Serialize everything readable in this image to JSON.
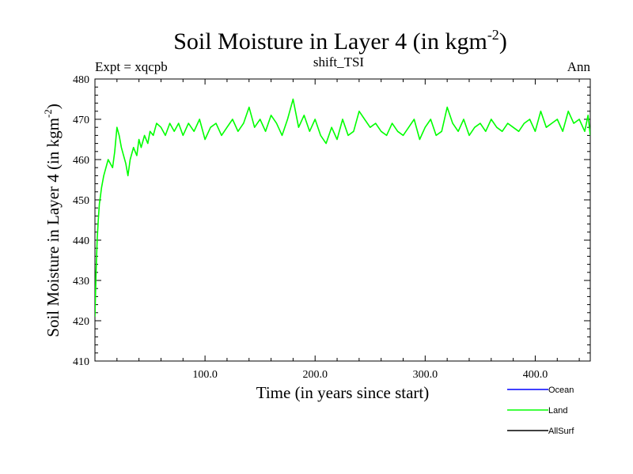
{
  "chart_data": {
    "type": "line",
    "title": "Soil Moisture in Layer 4 (in kgm",
    "title_sup": "-2",
    "title_close": ")",
    "subtitle_left": "Expt = xqcpb",
    "subtitle_center": "shift_TSI",
    "subtitle_right": "Ann",
    "xlabel": "Time (in years since start)",
    "ylabel": "Soil Moisture in Layer 4 (in kgm",
    "ylabel_sup": "-2",
    "ylabel_close": ")",
    "xlim": [
      0,
      450
    ],
    "ylim": [
      410,
      480
    ],
    "x_ticks": [
      100,
      200,
      300,
      400
    ],
    "x_tick_labels": [
      "100.0",
      "200.0",
      "300.0",
      "400.0"
    ],
    "y_ticks": [
      410,
      420,
      430,
      440,
      450,
      460,
      470,
      480
    ],
    "y_tick_labels": [
      "410",
      "420",
      "430",
      "440",
      "450",
      "460",
      "470",
      "480"
    ],
    "legend": [
      {
        "name": "Ocean",
        "color": "#0000ff"
      },
      {
        "name": "Land",
        "color": "#00ff00"
      },
      {
        "name": "AllSurf",
        "color": "#000000"
      }
    ],
    "series": [
      {
        "name": "Land",
        "color": "#00ff00",
        "x": [
          0,
          1,
          2,
          3,
          4,
          5,
          6,
          8,
          10,
          12,
          14,
          16,
          18,
          20,
          22,
          24,
          26,
          28,
          30,
          32,
          35,
          38,
          40,
          42,
          45,
          48,
          50,
          53,
          56,
          60,
          64,
          68,
          72,
          76,
          80,
          85,
          90,
          95,
          100,
          105,
          110,
          115,
          120,
          125,
          130,
          135,
          140,
          145,
          150,
          155,
          160,
          165,
          170,
          175,
          180,
          185,
          190,
          195,
          200,
          205,
          210,
          215,
          220,
          225,
          230,
          235,
          240,
          245,
          250,
          255,
          260,
          265,
          270,
          275,
          280,
          285,
          290,
          295,
          300,
          305,
          310,
          315,
          320,
          325,
          330,
          335,
          340,
          345,
          350,
          355,
          360,
          365,
          370,
          375,
          380,
          385,
          390,
          395,
          400,
          405,
          410,
          415,
          420,
          425,
          430,
          435,
          440,
          445,
          448,
          450
        ],
        "values": [
          421,
          432,
          440,
          445,
          449,
          451,
          453,
          456,
          458,
          460,
          459,
          458,
          462,
          468,
          466,
          463,
          461,
          459,
          456,
          460,
          463,
          461,
          465,
          463,
          466,
          464,
          467,
          466,
          469,
          468,
          466,
          469,
          467,
          469,
          466,
          469,
          467,
          470,
          465,
          468,
          469,
          466,
          468,
          470,
          467,
          469,
          473,
          468,
          470,
          467,
          471,
          469,
          466,
          470,
          475,
          468,
          471,
          467,
          470,
          466,
          464,
          468,
          465,
          470,
          466,
          467,
          472,
          470,
          468,
          469,
          467,
          466,
          469,
          467,
          466,
          468,
          470,
          465,
          468,
          470,
          466,
          467,
          473,
          469,
          467,
          470,
          466,
          468,
          469,
          467,
          470,
          468,
          467,
          469,
          468,
          467,
          469,
          470,
          467,
          472,
          468,
          469,
          470,
          467,
          472,
          469,
          470,
          467,
          471,
          466
        ]
      }
    ]
  }
}
